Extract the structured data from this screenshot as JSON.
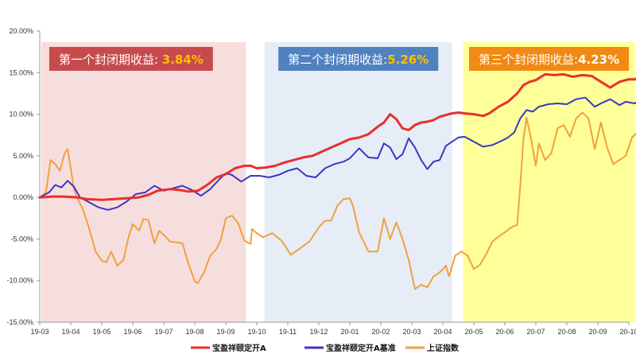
{
  "chart_data": {
    "type": "line",
    "x_ticks": [
      "19-03",
      "19-04",
      "19-05",
      "19-06",
      "19-07",
      "19-08",
      "19-09",
      "19-10",
      "19-11",
      "19-12",
      "20-01",
      "20-02",
      "20-03",
      "20-04",
      "20-05",
      "20-06",
      "20-07",
      "20-08",
      "20-09",
      "20-10"
    ],
    "y_ticks": [
      "20.00%",
      "15.00%",
      "10.00%",
      "5.00%",
      "0.00%",
      "-5.00%",
      "-10.00%",
      "-15.00%"
    ],
    "ylim": [
      -15,
      20
    ],
    "grid": false,
    "legend_position": "bottom",
    "periods": [
      {
        "label": "第一个封闭期收益: ",
        "value": "3.84%",
        "start": 0.05,
        "end": 6.65,
        "band_color": "#f6dede",
        "badge_color": "#c74b4c",
        "value_color": "#ffc000",
        "badge_pos": "left"
      },
      {
        "label": "第二个封闭期收益:",
        "value": "5.26%",
        "start": 7.25,
        "end": 13.3,
        "band_color": "#e7edf6",
        "badge_color": "#5082c0",
        "value_color": "#ffc000",
        "badge_pos": "center"
      },
      {
        "label": "第三个封闭期收益:",
        "value": "4.23%",
        "start": 13.65,
        "end": 19.2,
        "band_color": "#ffff99",
        "badge_color": "#f08a14",
        "value_color": "#ffffff",
        "badge_pos": "center"
      }
    ],
    "series": [
      {
        "name": "宝盈祥颐定开A",
        "color": "#e8302c",
        "width": 3,
        "points": [
          [
            0,
            0
          ],
          [
            0.4,
            0.1
          ],
          [
            0.8,
            0.1
          ],
          [
            1.2,
            0
          ],
          [
            1.5,
            -0.2
          ],
          [
            2,
            -0.3
          ],
          [
            2.4,
            -0.2
          ],
          [
            2.8,
            -0.1
          ],
          [
            3.2,
            0
          ],
          [
            3.5,
            0.3
          ],
          [
            3.8,
            0.8
          ],
          [
            4.2,
            1
          ],
          [
            4.5,
            0.9
          ],
          [
            4.8,
            0.7
          ],
          [
            5.1,
            0.8
          ],
          [
            5.4,
            1.5
          ],
          [
            5.7,
            2.4
          ],
          [
            6,
            2.8
          ],
          [
            6.3,
            3.5
          ],
          [
            6.6,
            3.8
          ],
          [
            6.8,
            3.8
          ],
          [
            7,
            3.5
          ],
          [
            7.3,
            3.6
          ],
          [
            7.6,
            3.8
          ],
          [
            7.9,
            4.2
          ],
          [
            8.2,
            4.5
          ],
          [
            8.5,
            4.8
          ],
          [
            8.8,
            5
          ],
          [
            9.1,
            5.5
          ],
          [
            9.4,
            6
          ],
          [
            9.7,
            6.5
          ],
          [
            10,
            7
          ],
          [
            10.3,
            7.2
          ],
          [
            10.6,
            7.6
          ],
          [
            10.9,
            8.5
          ],
          [
            11.1,
            9
          ],
          [
            11.3,
            10
          ],
          [
            11.5,
            9.4
          ],
          [
            11.7,
            8.3
          ],
          [
            11.9,
            8.1
          ],
          [
            12.1,
            8.7
          ],
          [
            12.3,
            9
          ],
          [
            12.5,
            9.1
          ],
          [
            12.7,
            9.3
          ],
          [
            12.9,
            9.7
          ],
          [
            13.1,
            9.9
          ],
          [
            13.3,
            10.1
          ],
          [
            13.5,
            10.2
          ],
          [
            13.7,
            10.1
          ],
          [
            14,
            10
          ],
          [
            14.3,
            9.8
          ],
          [
            14.5,
            10.1
          ],
          [
            14.8,
            10.9
          ],
          [
            15.1,
            11.5
          ],
          [
            15.4,
            12.5
          ],
          [
            15.6,
            13.5
          ],
          [
            15.8,
            13.9
          ],
          [
            16,
            14.1
          ],
          [
            16.3,
            14.8
          ],
          [
            16.6,
            14.7
          ],
          [
            16.9,
            14.8
          ],
          [
            17.2,
            14.5
          ],
          [
            17.5,
            14.7
          ],
          [
            17.8,
            14.6
          ],
          [
            18.1,
            13.9
          ],
          [
            18.4,
            13.2
          ],
          [
            18.7,
            13.9
          ],
          [
            19,
            14.2
          ],
          [
            19.2,
            14.2
          ],
          [
            19.4,
            14.7
          ],
          [
            19.5,
            14.5
          ]
        ]
      },
      {
        "name": "宝盈祥颐定开A基准",
        "color": "#3c36c4",
        "width": 2,
        "points": [
          [
            0,
            0
          ],
          [
            0.3,
            0.6
          ],
          [
            0.5,
            1.5
          ],
          [
            0.7,
            1.2
          ],
          [
            0.9,
            2
          ],
          [
            1.1,
            1.3
          ],
          [
            1.3,
            0
          ],
          [
            1.6,
            -0.6
          ],
          [
            1.9,
            -1.2
          ],
          [
            2.2,
            -1.5
          ],
          [
            2.5,
            -1.2
          ],
          [
            2.8,
            -0.5
          ],
          [
            3.1,
            0.4
          ],
          [
            3.4,
            0.6
          ],
          [
            3.7,
            1.4
          ],
          [
            4,
            0.8
          ],
          [
            4.3,
            1.1
          ],
          [
            4.6,
            1.4
          ],
          [
            4.9,
            0.9
          ],
          [
            5.2,
            0.2
          ],
          [
            5.5,
            1
          ],
          [
            5.8,
            2.2
          ],
          [
            6,
            2.9
          ],
          [
            6.2,
            2.7
          ],
          [
            6.5,
            1.9
          ],
          [
            6.8,
            2.6
          ],
          [
            7.1,
            2.6
          ],
          [
            7.4,
            2.4
          ],
          [
            7.7,
            2.7
          ],
          [
            8,
            3.2
          ],
          [
            8.3,
            3.5
          ],
          [
            8.6,
            2.6
          ],
          [
            8.9,
            2.4
          ],
          [
            9.2,
            3.5
          ],
          [
            9.5,
            4
          ],
          [
            9.8,
            4.3
          ],
          [
            10,
            4.7
          ],
          [
            10.3,
            5.9
          ],
          [
            10.6,
            4.8
          ],
          [
            10.9,
            4.7
          ],
          [
            11.1,
            6.5
          ],
          [
            11.3,
            6
          ],
          [
            11.5,
            4.6
          ],
          [
            11.7,
            5.2
          ],
          [
            11.9,
            7.1
          ],
          [
            12.1,
            6
          ],
          [
            12.3,
            4.5
          ],
          [
            12.5,
            3.4
          ],
          [
            12.7,
            4.3
          ],
          [
            12.9,
            4.5
          ],
          [
            13.1,
            6.2
          ],
          [
            13.3,
            6.7
          ],
          [
            13.5,
            7.2
          ],
          [
            13.7,
            7.3
          ],
          [
            14,
            6.7
          ],
          [
            14.3,
            6.1
          ],
          [
            14.6,
            6.3
          ],
          [
            14.9,
            6.8
          ],
          [
            15.1,
            7.2
          ],
          [
            15.3,
            7.8
          ],
          [
            15.5,
            9.5
          ],
          [
            15.7,
            10.5
          ],
          [
            15.9,
            10.3
          ],
          [
            16.1,
            10.9
          ],
          [
            16.4,
            11.2
          ],
          [
            16.7,
            11.3
          ],
          [
            17,
            11.2
          ],
          [
            17.3,
            11.8
          ],
          [
            17.6,
            12
          ],
          [
            17.9,
            10.9
          ],
          [
            18.1,
            11.3
          ],
          [
            18.4,
            11.8
          ],
          [
            18.7,
            11.1
          ],
          [
            18.9,
            11.5
          ],
          [
            19.2,
            11.3
          ],
          [
            19.4,
            11.9
          ],
          [
            19.5,
            11.5
          ]
        ]
      },
      {
        "name": "上证指数",
        "color": "#f0a13c",
        "width": 2,
        "points": [
          [
            0,
            0
          ],
          [
            0.2,
            0.6
          ],
          [
            0.35,
            4.5
          ],
          [
            0.5,
            4
          ],
          [
            0.65,
            3.2
          ],
          [
            0.8,
            5.3
          ],
          [
            0.9,
            5.8
          ],
          [
            1,
            3.5
          ],
          [
            1.1,
            1
          ],
          [
            1.2,
            0
          ],
          [
            1.4,
            -1.5
          ],
          [
            1.6,
            -3.8
          ],
          [
            1.8,
            -6.5
          ],
          [
            2,
            -7.6
          ],
          [
            2.15,
            -7.8
          ],
          [
            2.3,
            -6.5
          ],
          [
            2.5,
            -8.2
          ],
          [
            2.7,
            -7.5
          ],
          [
            2.85,
            -5
          ],
          [
            3,
            -3.2
          ],
          [
            3.2,
            -4
          ],
          [
            3.35,
            -2.6
          ],
          [
            3.5,
            -2.7
          ],
          [
            3.7,
            -5.5
          ],
          [
            3.85,
            -4
          ],
          [
            4,
            -4.5
          ],
          [
            4.2,
            -5.3
          ],
          [
            4.4,
            -5.4
          ],
          [
            4.6,
            -5.5
          ],
          [
            4.8,
            -8
          ],
          [
            5,
            -10.1
          ],
          [
            5.1,
            -10.3
          ],
          [
            5.3,
            -9
          ],
          [
            5.5,
            -7
          ],
          [
            5.7,
            -6.2
          ],
          [
            5.85,
            -5
          ],
          [
            6,
            -2.5
          ],
          [
            6.2,
            -2.2
          ],
          [
            6.4,
            -3.1
          ],
          [
            6.6,
            -5.2
          ],
          [
            6.8,
            -5.6
          ],
          [
            6.85,
            -3.8
          ],
          [
            7,
            -4.3
          ],
          [
            7.2,
            -4.8
          ],
          [
            7.5,
            -4.3
          ],
          [
            7.8,
            -5.2
          ],
          [
            8.1,
            -6.9
          ],
          [
            8.4,
            -6.1
          ],
          [
            8.7,
            -5.3
          ],
          [
            9,
            -3.6
          ],
          [
            9.2,
            -2.8
          ],
          [
            9.4,
            -2.8
          ],
          [
            9.6,
            -1
          ],
          [
            9.8,
            -0.2
          ],
          [
            10,
            -0.1
          ],
          [
            10.1,
            -1
          ],
          [
            10.3,
            -4.2
          ],
          [
            10.6,
            -6.5
          ],
          [
            10.9,
            -6.5
          ],
          [
            11.1,
            -2.5
          ],
          [
            11.3,
            -5
          ],
          [
            11.5,
            -3
          ],
          [
            11.7,
            -5
          ],
          [
            11.9,
            -7.5
          ],
          [
            12.1,
            -11
          ],
          [
            12.3,
            -10.5
          ],
          [
            12.5,
            -10.8
          ],
          [
            12.7,
            -9.5
          ],
          [
            12.9,
            -9
          ],
          [
            13.1,
            -8.2
          ],
          [
            13.2,
            -9.5
          ],
          [
            13.4,
            -7
          ],
          [
            13.6,
            -6.5
          ],
          [
            13.8,
            -7
          ],
          [
            14,
            -8.6
          ],
          [
            14.2,
            -8.1
          ],
          [
            14.4,
            -6.8
          ],
          [
            14.6,
            -5.3
          ],
          [
            14.8,
            -4.7
          ],
          [
            15,
            -4.2
          ],
          [
            15.2,
            -3.6
          ],
          [
            15.4,
            -3.3
          ],
          [
            15.5,
            1.5
          ],
          [
            15.6,
            7
          ],
          [
            15.7,
            9.6
          ],
          [
            15.85,
            7
          ],
          [
            16,
            3.8
          ],
          [
            16.1,
            6.5
          ],
          [
            16.3,
            4.5
          ],
          [
            16.5,
            5.3
          ],
          [
            16.7,
            8.3
          ],
          [
            16.9,
            8.7
          ],
          [
            17.1,
            7.3
          ],
          [
            17.3,
            9.5
          ],
          [
            17.5,
            10.2
          ],
          [
            17.7,
            9.5
          ],
          [
            17.9,
            5.8
          ],
          [
            18.1,
            9
          ],
          [
            18.3,
            6
          ],
          [
            18.5,
            4
          ],
          [
            18.7,
            4.5
          ],
          [
            18.9,
            5
          ],
          [
            19.1,
            7.2
          ],
          [
            19.3,
            7.9
          ],
          [
            19.45,
            6
          ],
          [
            19.5,
            5.8
          ]
        ]
      }
    ]
  }
}
